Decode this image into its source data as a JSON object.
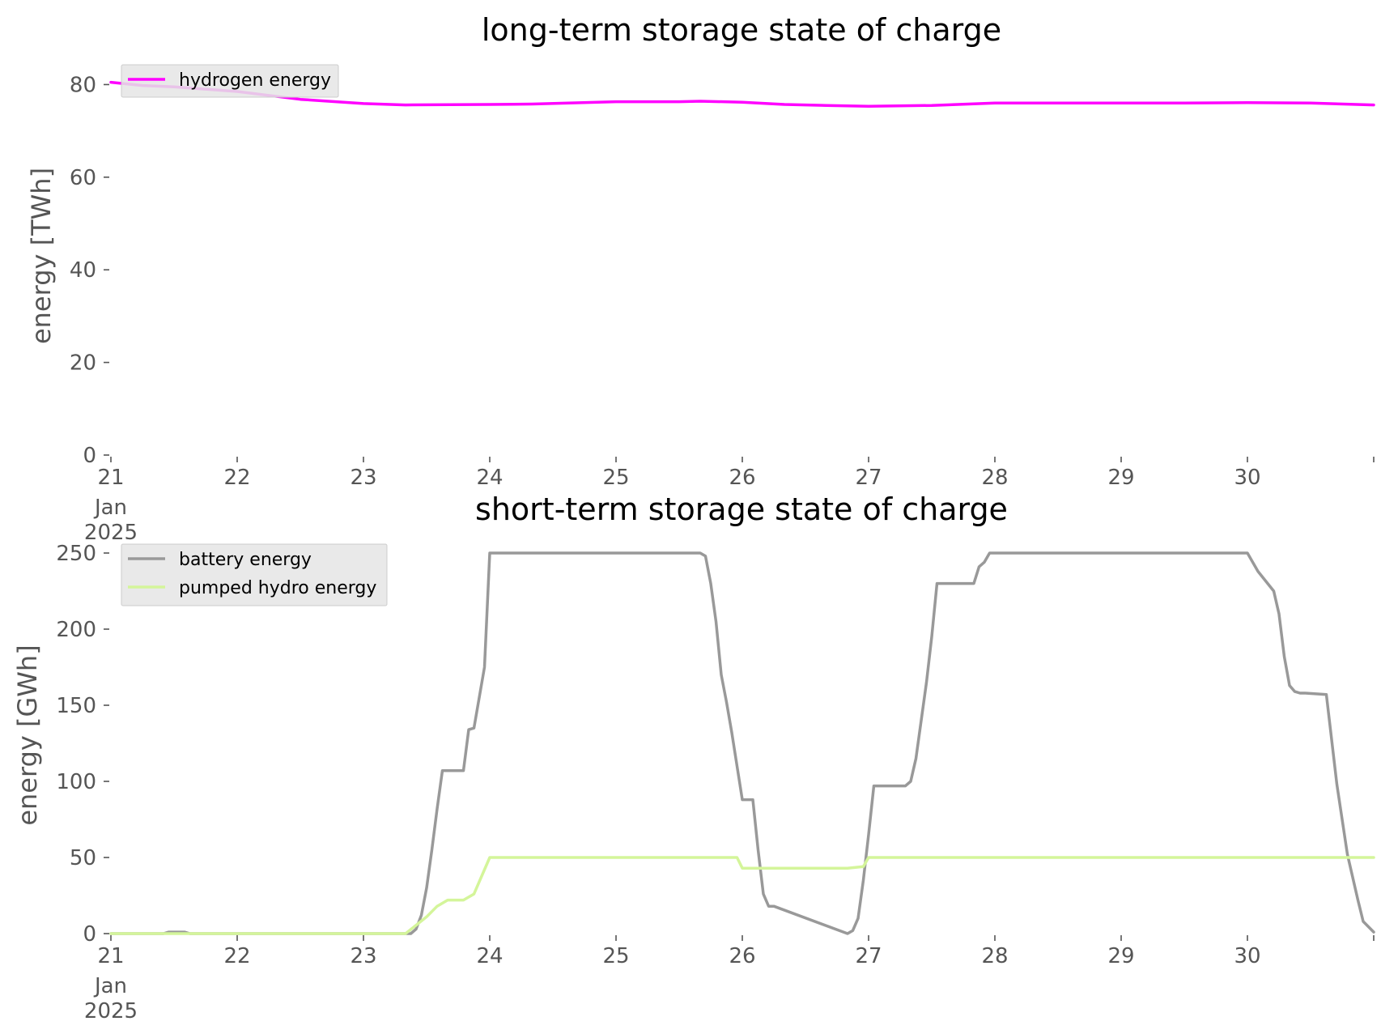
{
  "chart_data": [
    {
      "type": "line",
      "title": "long-term storage state of charge",
      "xlabel": "",
      "ylabel": "energy [TWh]",
      "ylim": [
        0,
        82
      ],
      "xlim": [
        "2025-01-21",
        "2025-01-31"
      ],
      "x_ticks": [
        {
          "x": "2025-01-21",
          "label": "21",
          "sub": [
            "Jan",
            "2025"
          ]
        },
        {
          "x": "2025-01-22",
          "label": "22"
        },
        {
          "x": "2025-01-23",
          "label": "23"
        },
        {
          "x": "2025-01-24",
          "label": "24"
        },
        {
          "x": "2025-01-25",
          "label": "25"
        },
        {
          "x": "2025-01-26",
          "label": "26"
        },
        {
          "x": "2025-01-27",
          "label": "27"
        },
        {
          "x": "2025-01-28",
          "label": "28"
        },
        {
          "x": "2025-01-29",
          "label": "29"
        },
        {
          "x": "2025-01-30",
          "label": "30"
        },
        {
          "x": "2025-01-31",
          "label": ""
        }
      ],
      "y_ticks": [
        0,
        20,
        40,
        60,
        80
      ],
      "grid": false,
      "legend_position": "upper-left",
      "series": [
        {
          "name": "hydrogen energy",
          "color": "#ff00ff",
          "x": [
            "2025-01-21 00:00",
            "2025-01-21 06:00",
            "2025-01-21 12:00",
            "2025-01-22 00:00",
            "2025-01-22 12:00",
            "2025-01-23 00:00",
            "2025-01-23 08:00",
            "2025-01-24 00:00",
            "2025-01-24 08:00",
            "2025-01-25 00:00",
            "2025-01-25 12:00",
            "2025-01-25 16:00",
            "2025-01-26 00:00",
            "2025-01-26 08:00",
            "2025-01-26 16:00",
            "2025-01-27 00:00",
            "2025-01-27 12:00",
            "2025-01-28 00:00",
            "2025-01-28 12:00",
            "2025-01-29 00:00",
            "2025-01-29 12:00",
            "2025-01-30 00:00",
            "2025-01-30 12:00",
            "2025-01-31 00:00"
          ],
          "y": [
            80.5,
            79.8,
            79.5,
            78.5,
            76.8,
            75.9,
            75.6,
            75.7,
            75.8,
            76.3,
            76.3,
            76.4,
            76.2,
            75.7,
            75.5,
            75.3,
            75.5,
            76.0,
            76.0,
            76.0,
            76.0,
            76.1,
            76.0,
            75.6
          ]
        }
      ]
    },
    {
      "type": "line",
      "title": "short-term storage state of charge",
      "xlabel": "",
      "ylabel": "energy [GWh]",
      "ylim": [
        0,
        250
      ],
      "xlim": [
        "2025-01-21",
        "2025-01-31"
      ],
      "x_ticks": [
        {
          "x": "2025-01-21",
          "label": "21",
          "sub": [
            "Jan",
            "2025"
          ]
        },
        {
          "x": "2025-01-22",
          "label": "22"
        },
        {
          "x": "2025-01-23",
          "label": "23"
        },
        {
          "x": "2025-01-24",
          "label": "24"
        },
        {
          "x": "2025-01-25",
          "label": "25"
        },
        {
          "x": "2025-01-26",
          "label": "26"
        },
        {
          "x": "2025-01-27",
          "label": "27"
        },
        {
          "x": "2025-01-28",
          "label": "28"
        },
        {
          "x": "2025-01-29",
          "label": "29"
        },
        {
          "x": "2025-01-30",
          "label": "30"
        },
        {
          "x": "2025-01-31",
          "label": ""
        }
      ],
      "y_ticks": [
        0,
        50,
        100,
        150,
        200,
        250
      ],
      "grid": false,
      "legend_position": "upper-left",
      "series": [
        {
          "name": "battery energy",
          "color": "#999999",
          "x": [
            "2025-01-21 00:00",
            "2025-01-21 10:00",
            "2025-01-21 11:00",
            "2025-01-21 14:00",
            "2025-01-21 15:00",
            "2025-01-23 09:00",
            "2025-01-23 10:00",
            "2025-01-23 11:00",
            "2025-01-23 12:00",
            "2025-01-23 13:00",
            "2025-01-23 14:00",
            "2025-01-23 15:00",
            "2025-01-23 16:00",
            "2025-01-23 19:00",
            "2025-01-23 20:00",
            "2025-01-23 21:00",
            "2025-01-23 23:00",
            "2025-01-24 00:00",
            "2025-01-25 16:00",
            "2025-01-25 17:00",
            "2025-01-25 18:00",
            "2025-01-25 19:00",
            "2025-01-25 20:00",
            "2025-01-25 21:00",
            "2025-01-25 22:00",
            "2025-01-26 00:00",
            "2025-01-26 01:00",
            "2025-01-26 02:00",
            "2025-01-26 03:00",
            "2025-01-26 04:00",
            "2025-01-26 05:00",
            "2025-01-26 06:00",
            "2025-01-26 20:00",
            "2025-01-26 21:00",
            "2025-01-26 22:00",
            "2025-01-26 23:00",
            "2025-01-27 00:00",
            "2025-01-27 01:00",
            "2025-01-27 07:00",
            "2025-01-27 08:00",
            "2025-01-27 09:00",
            "2025-01-27 10:00",
            "2025-01-27 11:00",
            "2025-01-27 12:00",
            "2025-01-27 13:00",
            "2025-01-27 20:00",
            "2025-01-27 21:00",
            "2025-01-27 22:00",
            "2025-01-27 23:00",
            "2025-01-28 00:00",
            "2025-01-30 00:00",
            "2025-01-30 02:00",
            "2025-01-30 05:00",
            "2025-01-30 06:00",
            "2025-01-30 07:00",
            "2025-01-30 08:00",
            "2025-01-30 09:00",
            "2025-01-30 10:00",
            "2025-01-30 11:00",
            "2025-01-30 15:00",
            "2025-01-30 17:00",
            "2025-01-30 19:00",
            "2025-01-30 21:00",
            "2025-01-30 22:00",
            "2025-01-31 00:00"
          ],
          "y": [
            0,
            0,
            1,
            1,
            0,
            0,
            3,
            12,
            30,
            55,
            82,
            107,
            107,
            107,
            134,
            135,
            175,
            250,
            250,
            248,
            230,
            205,
            170,
            152,
            132,
            88,
            88,
            88,
            55,
            26,
            18,
            18,
            0,
            2,
            10,
            35,
            65,
            97,
            97,
            100,
            115,
            140,
            165,
            195,
            230,
            230,
            241,
            244,
            250,
            250,
            250,
            238,
            225,
            210,
            182,
            163,
            159,
            158,
            158,
            157,
            98,
            52,
            22,
            8,
            1
          ]
        },
        {
          "name": "pumped hydro energy",
          "color": "#d4f59a",
          "x": [
            "2025-01-21 00:00",
            "2025-01-23 08:00",
            "2025-01-23 12:00",
            "2025-01-23 14:00",
            "2025-01-23 16:00",
            "2025-01-23 19:00",
            "2025-01-23 21:00",
            "2025-01-23 23:00",
            "2025-01-24 00:00",
            "2025-01-25 23:00",
            "2025-01-26 00:00",
            "2025-01-26 20:00",
            "2025-01-26 23:00",
            "2025-01-27 00:00",
            "2025-01-31 00:00"
          ],
          "y": [
            0,
            0,
            11,
            18,
            22,
            22,
            26,
            42,
            50,
            50,
            43,
            43,
            44,
            50,
            50
          ]
        }
      ]
    }
  ]
}
